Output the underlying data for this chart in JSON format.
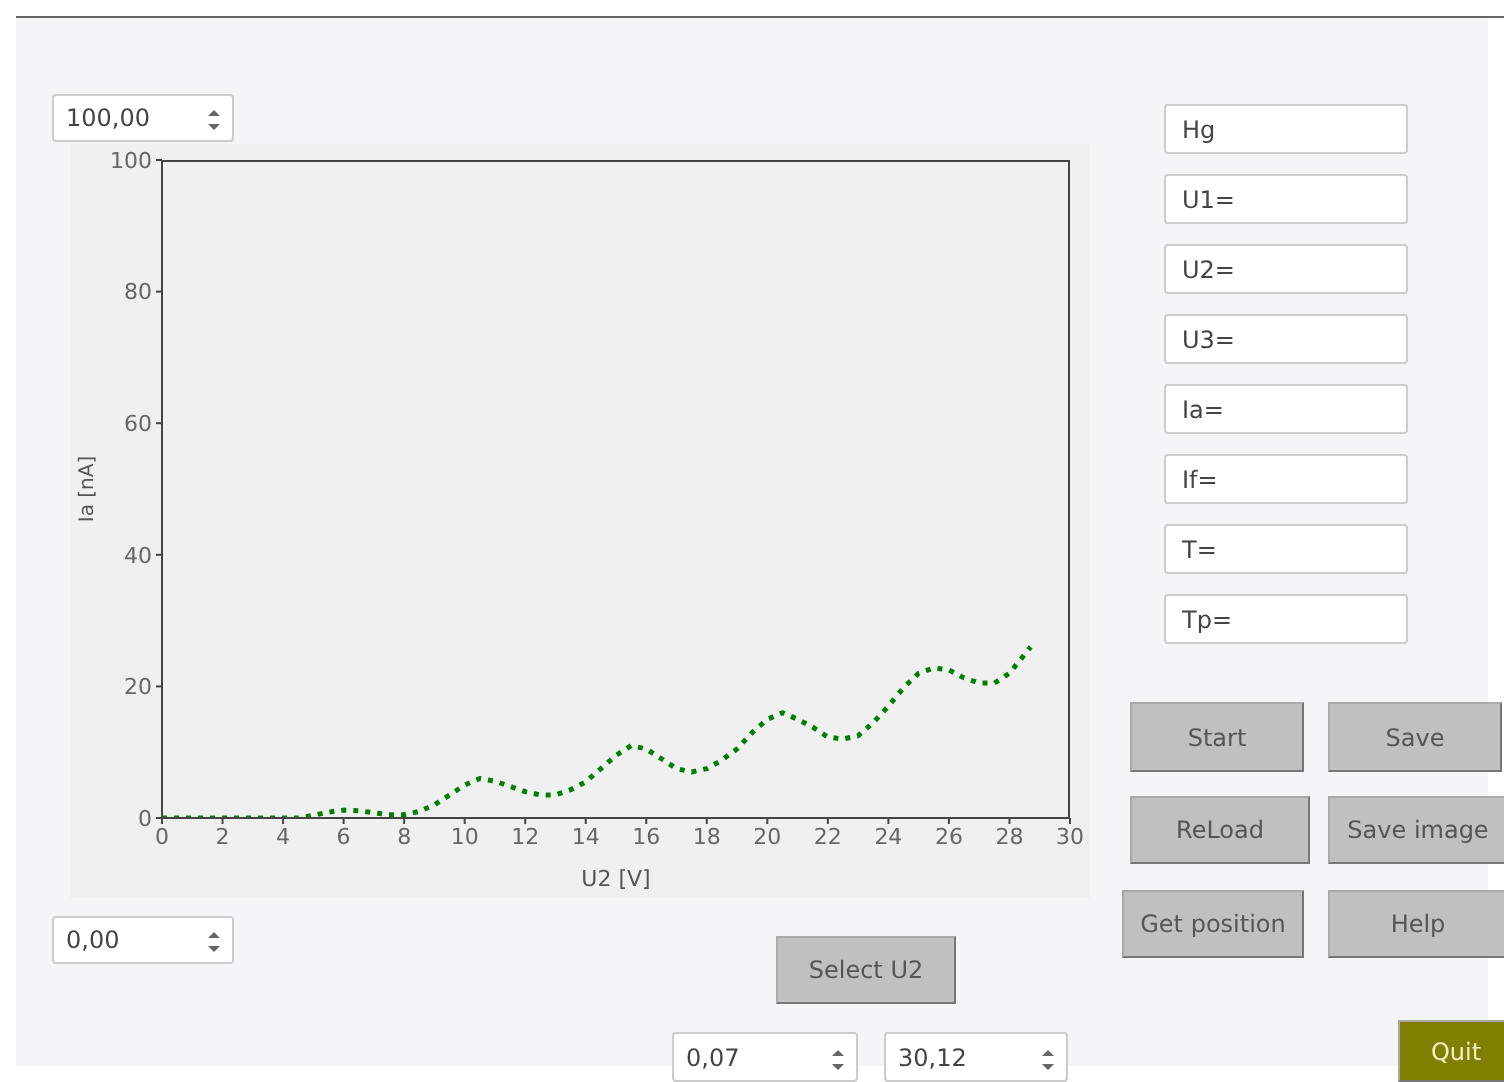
{
  "chart_data": {
    "type": "line",
    "xlabel": "U2 [V]",
    "ylabel": "Ia [nA]",
    "x": [
      0,
      0.5,
      1,
      1.5,
      2,
      2.5,
      3,
      3.5,
      4,
      4.5,
      5,
      5.5,
      6,
      6.5,
      7,
      7.5,
      8,
      8.5,
      9,
      9.5,
      10,
      10.5,
      11,
      11.5,
      12,
      12.5,
      13,
      13.5,
      14,
      14.5,
      15,
      15.5,
      16,
      16.5,
      17,
      17.5,
      18,
      18.5,
      19,
      19.5,
      20,
      20.5,
      21,
      21.5,
      22,
      22.5,
      23,
      23.5,
      24,
      24.5,
      25,
      25.5,
      26,
      26.5,
      27,
      27.5,
      28,
      28.7
    ],
    "series": [
      {
        "color": "#008000",
        "values": [
          0,
          0,
          0,
          0,
          0,
          0,
          0,
          0,
          0,
          0,
          0.4,
          0.9,
          1.2,
          1.1,
          0.8,
          0.5,
          0.5,
          1,
          2,
          3.5,
          5,
          6,
          5.6,
          4.8,
          4,
          3.5,
          3.5,
          4.3,
          5.5,
          7.5,
          9.5,
          11,
          10.5,
          9,
          7.5,
          7,
          7.5,
          8.8,
          10.5,
          13,
          15,
          16,
          15,
          13.8,
          12.3,
          12,
          12.5,
          14.5,
          17,
          19.8,
          22,
          22.8,
          22.5,
          21.3,
          20.5,
          20.5,
          22,
          26
        ]
      }
    ],
    "xlim": [
      0,
      30
    ],
    "ylim": [
      0,
      100
    ],
    "xticks": [
      0,
      2,
      4,
      6,
      8,
      10,
      12,
      14,
      16,
      18,
      20,
      22,
      24,
      26,
      28,
      30
    ],
    "yticks": [
      0,
      20,
      40,
      60,
      80,
      100
    ],
    "grid": false,
    "legend": false,
    "marker": "none",
    "line_style": "dotted",
    "annotations": [
      "100,00",
      "0,00",
      "Hg",
      "U1=",
      "U2=",
      "U3=",
      "Ia=",
      "If=",
      "T=",
      "Tp=",
      "Start",
      "Save",
      "ReLoad",
      "Save image",
      "Get position",
      "Help",
      "Select U2",
      "0,07",
      "30,12",
      "Quit"
    ]
  }
}
